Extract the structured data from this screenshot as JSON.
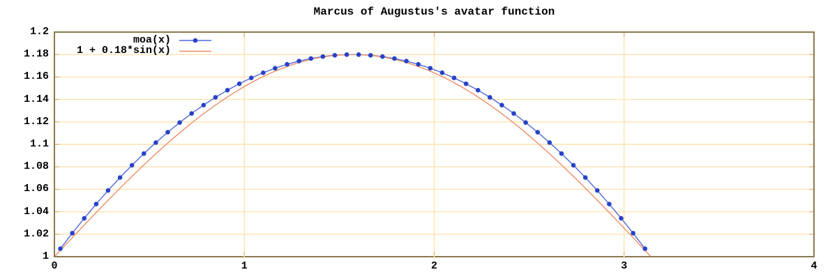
{
  "title": "Marcus of Augustus's avatar function",
  "colors": {
    "background": "#ffffff",
    "text": "#000000",
    "grid": "#ffe2b0",
    "tick": "#e0b376",
    "frame": "#8c7850",
    "moa_line": "#5069d6",
    "moa_marker": "#2742c8",
    "sin_line": "#ec8e68"
  },
  "legend": {
    "position": "top-left-inside",
    "entries": [
      {
        "label": "moa(x)",
        "series": "moa",
        "marker": true
      },
      {
        "label": "1 + 0.18*sin(x)",
        "series": "sin",
        "marker": false
      }
    ]
  },
  "chart_data": {
    "type": "line",
    "title": "Marcus of Augustus's avatar function",
    "xlabel": "",
    "ylabel": "",
    "grid": true,
    "xlim": [
      0,
      4
    ],
    "ylim": [
      1,
      1.2
    ],
    "x_ticks": [
      "0",
      "1",
      "2",
      "3",
      "4"
    ],
    "y_ticks": [
      "1",
      "1.02",
      "1.04",
      "1.06",
      "1.08",
      "1.1",
      "1.12",
      "1.14",
      "1.16",
      "1.18",
      "1.2"
    ],
    "series": [
      {
        "key": "moa",
        "name": "moa(x)",
        "style": "linespoints",
        "points": [
          [
            0.0314,
            1.00713
          ],
          [
            0.0942,
            1.02095
          ],
          [
            0.1571,
            1.0342
          ],
          [
            0.2199,
            1.04687
          ],
          [
            0.2827,
            1.05897
          ],
          [
            0.3456,
            1.07049
          ],
          [
            0.4084,
            1.08143
          ],
          [
            0.4712,
            1.0918
          ],
          [
            0.5341,
            1.10159
          ],
          [
            0.5969,
            1.11081
          ],
          [
            0.6597,
            1.11945
          ],
          [
            0.7226,
            1.12751
          ],
          [
            0.7854,
            1.135
          ],
          [
            0.8482,
            1.14191
          ],
          [
            0.9111,
            1.14825
          ],
          [
            0.9739,
            1.15401
          ],
          [
            1.0367,
            1.15919
          ],
          [
            1.0996,
            1.1638
          ],
          [
            1.1624,
            1.16783
          ],
          [
            1.2252,
            1.17129
          ],
          [
            1.2881,
            1.17417
          ],
          [
            1.3509,
            1.17647
          ],
          [
            1.4137,
            1.1782
          ],
          [
            1.4765,
            1.17935
          ],
          [
            1.5394,
            1.17994
          ],
          [
            1.6022,
            1.17994
          ],
          [
            1.665,
            1.17935
          ],
          [
            1.7279,
            1.1782
          ],
          [
            1.7907,
            1.17647
          ],
          [
            1.8535,
            1.17417
          ],
          [
            1.9164,
            1.17129
          ],
          [
            1.9792,
            1.16783
          ],
          [
            2.042,
            1.1638
          ],
          [
            2.1049,
            1.15919
          ],
          [
            2.1677,
            1.15401
          ],
          [
            2.2305,
            1.14825
          ],
          [
            2.2934,
            1.14191
          ],
          [
            2.3562,
            1.135
          ],
          [
            2.419,
            1.12751
          ],
          [
            2.4819,
            1.11945
          ],
          [
            2.5447,
            1.11081
          ],
          [
            2.6075,
            1.10159
          ],
          [
            2.6704,
            1.0918
          ],
          [
            2.7332,
            1.08143
          ],
          [
            2.796,
            1.07049
          ],
          [
            2.8588,
            1.05897
          ],
          [
            2.9217,
            1.04687
          ],
          [
            2.9845,
            1.0342
          ],
          [
            3.0473,
            1.02095
          ],
          [
            3.1102,
            1.00713
          ]
        ]
      },
      {
        "key": "sin",
        "name": "1 + 0.18*sin(x)",
        "style": "line",
        "formula": {
          "fn": "sin",
          "offset": 1,
          "amplitude": 0.18
        },
        "domain": [
          0,
          3.14159265
        ],
        "samples": 120
      }
    ]
  }
}
